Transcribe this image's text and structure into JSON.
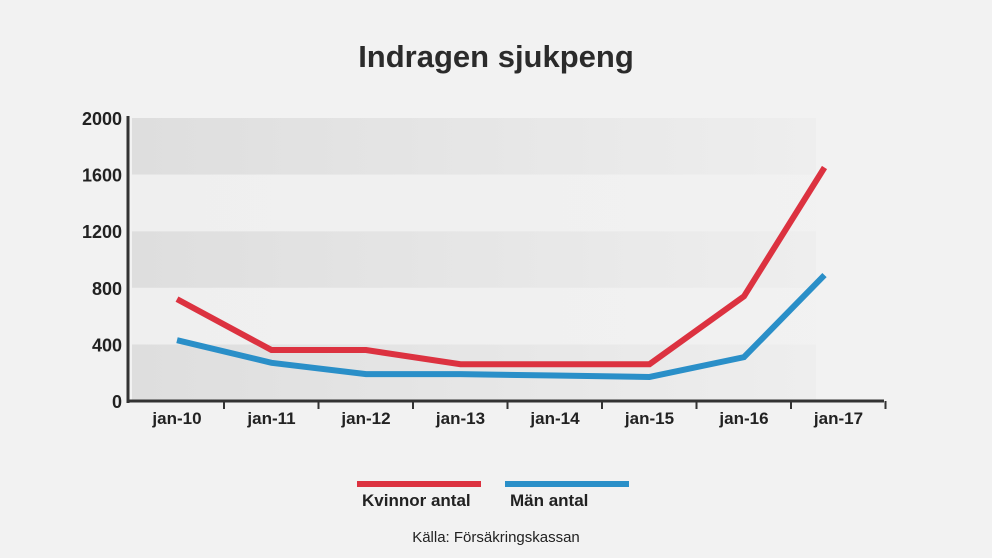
{
  "chart_data": {
    "type": "line",
    "title": "Indragen sjukpeng",
    "categories": [
      "jan-10",
      "jan-11",
      "jan-12",
      "jan-13",
      "jan-14",
      "jan-15",
      "jan-16",
      "jan-17"
    ],
    "series": [
      {
        "name": "Kvinnor antal",
        "color": "#dc3240",
        "values": [
          720,
          360,
          360,
          260,
          260,
          260,
          740,
          1650
        ]
      },
      {
        "name": "Män antal",
        "color": "#2a8fc8",
        "values": [
          430,
          270,
          190,
          190,
          180,
          170,
          310,
          890
        ]
      }
    ],
    "yticks": [
      "0",
      "400",
      "800",
      "1200",
      "1600",
      "2000"
    ],
    "ylim": [
      0,
      2000
    ],
    "xlabel": "",
    "ylabel": "",
    "legend": "bottom",
    "source": "Källa: Försäkringskassan"
  }
}
